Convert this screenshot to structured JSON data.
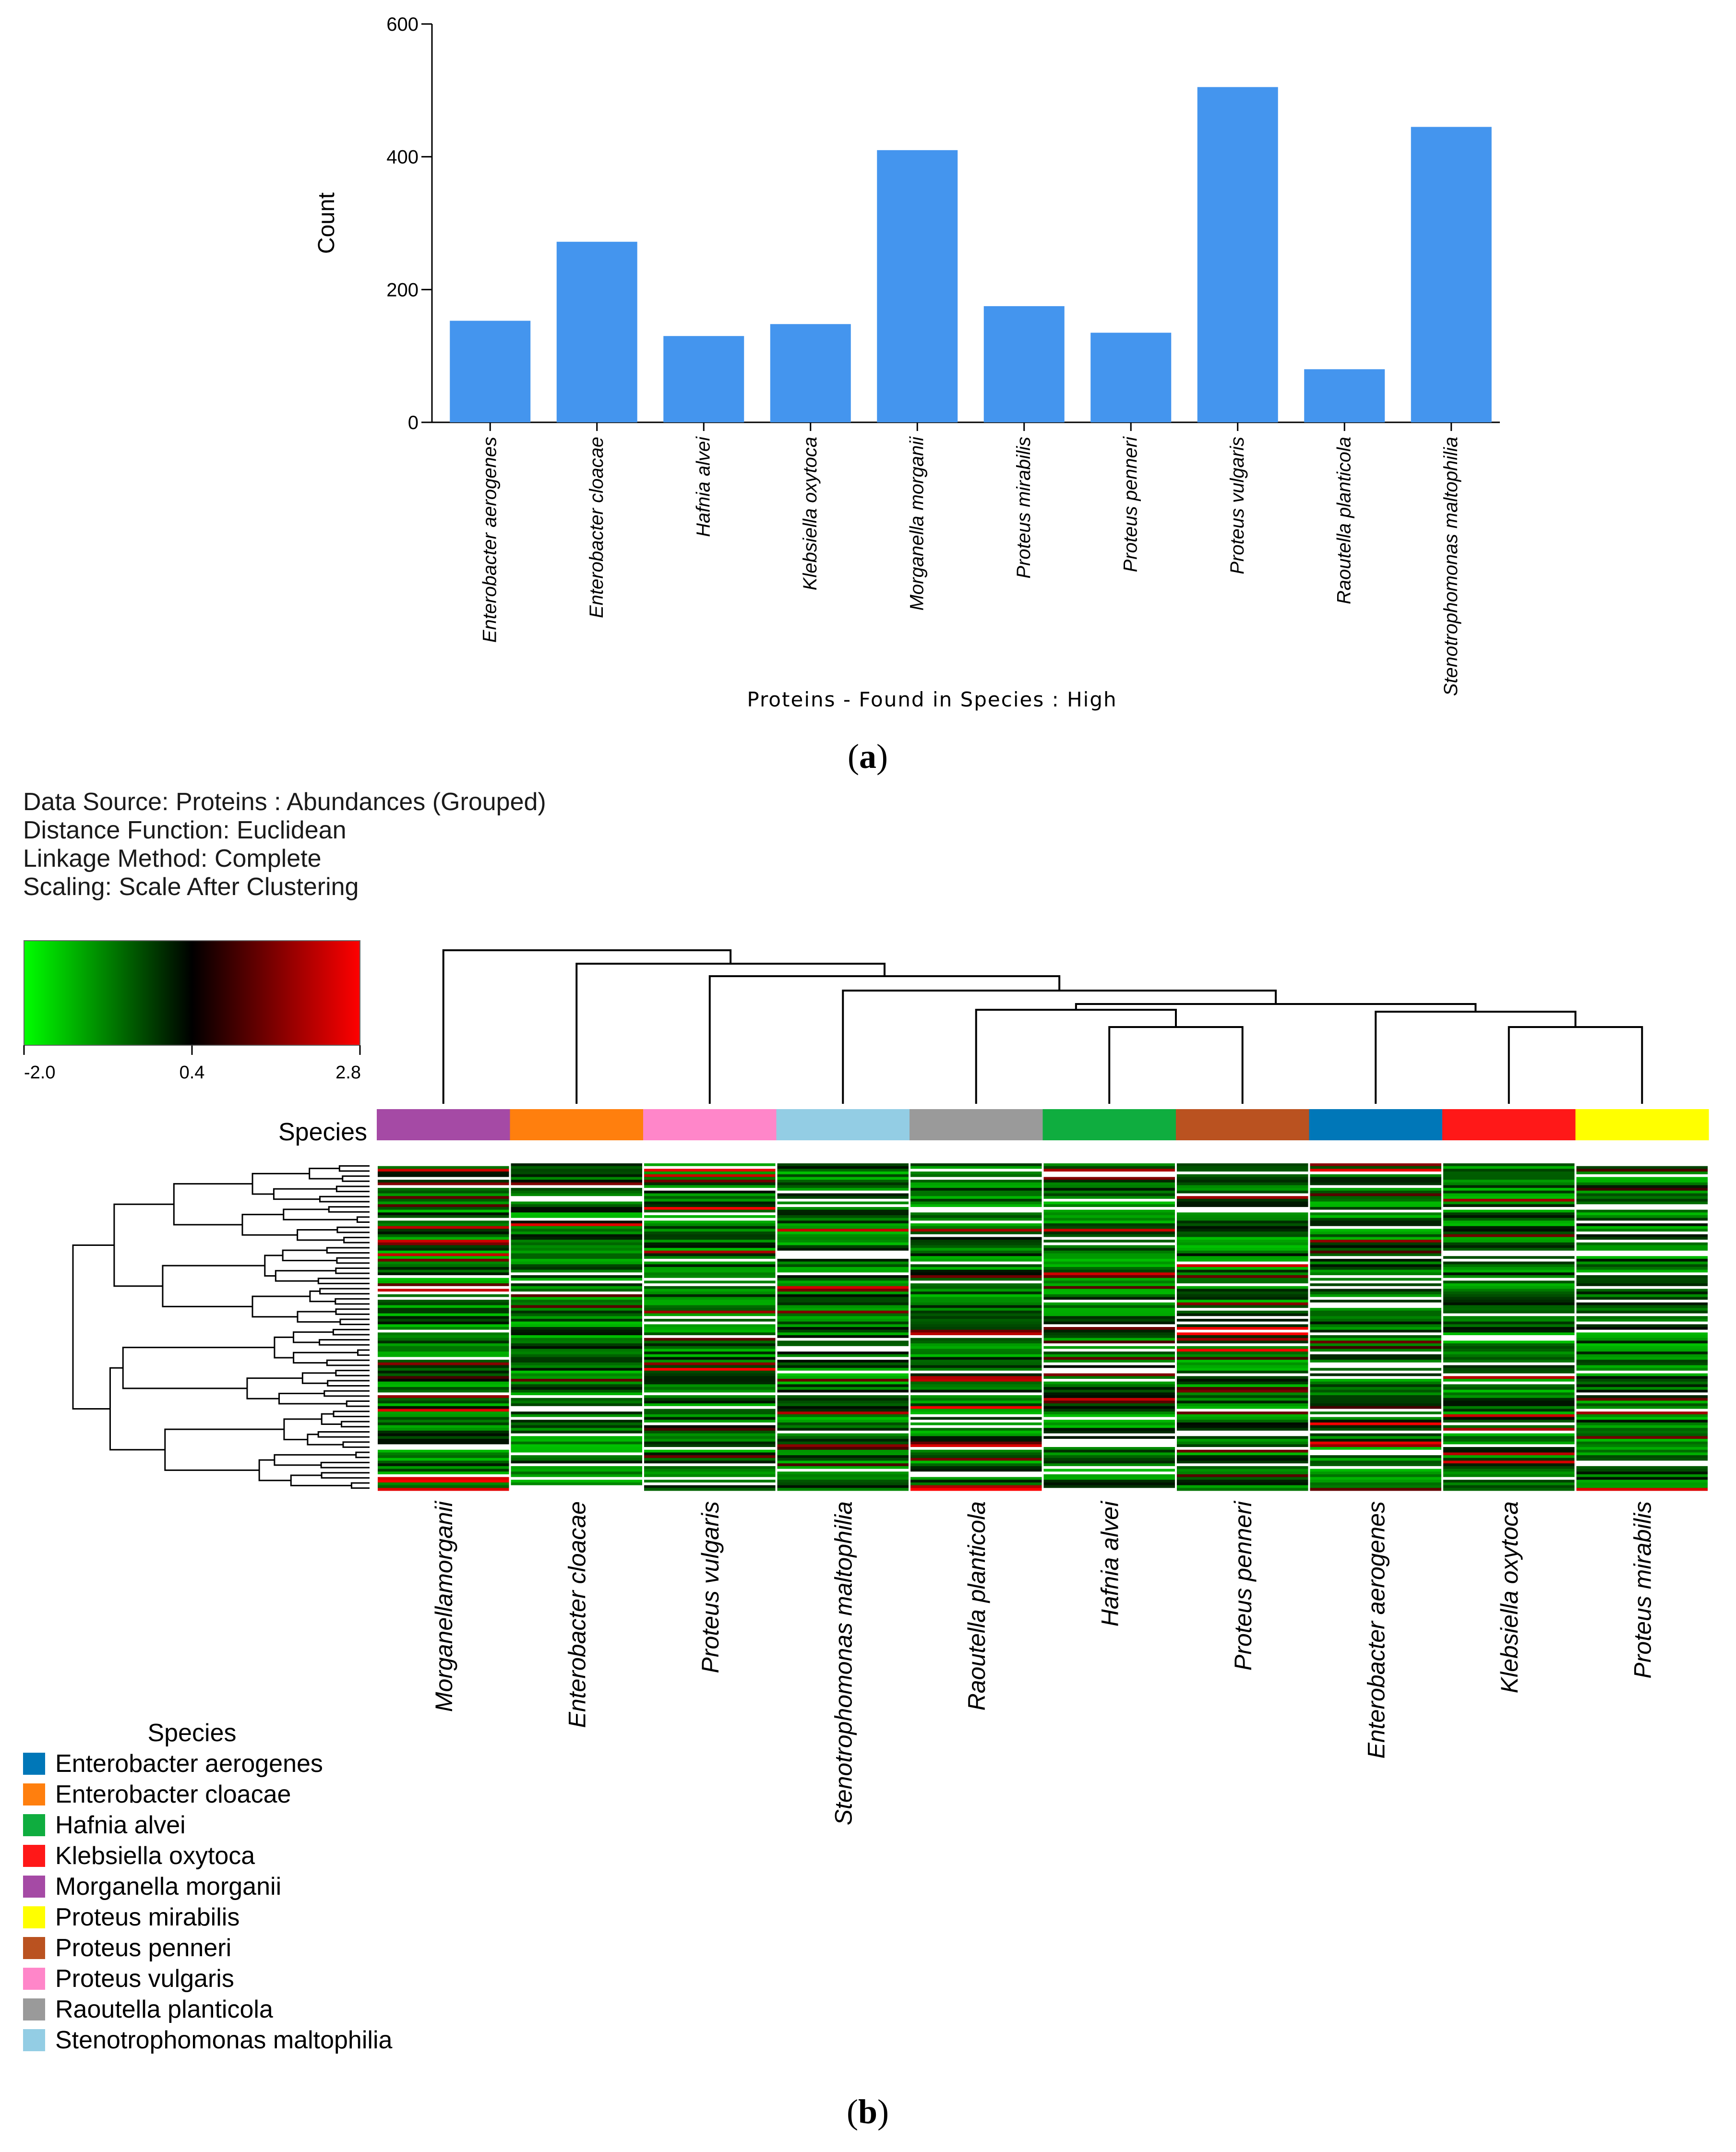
{
  "chart_data": [
    {
      "type": "bar",
      "panel": "a",
      "title": "",
      "ylabel": "Count",
      "xlabel": "Proteins - Found in Species : High",
      "ylim": [
        0,
        600
      ],
      "yticks": [
        0,
        200,
        400,
        600
      ],
      "categories": [
        "Enterobacter aerogenes",
        "Enterobacter cloacae",
        "Hafnia alvei",
        "Klebsiella oxytoca",
        "Morganella morganii",
        "Proteus mirabilis",
        "Proteus penneri",
        "Proteus vulgaris",
        "Raoutella planticola",
        "Stenotrophomonas maltophilia"
      ],
      "values": [
        153,
        272,
        130,
        148,
        410,
        175,
        135,
        505,
        80,
        445
      ],
      "bar_color": "#4495ee"
    },
    {
      "type": "heatmap",
      "panel": "b",
      "info": [
        "Data Source: Proteins : Abundances (Grouped)",
        "Distance Function: Euclidean",
        "Linkage Method: Complete",
        "Scaling: Scale After Clustering"
      ],
      "colorscale": {
        "min": -2.0,
        "mid": 0.4,
        "max": 2.8,
        "ticks": [
          "-2.0",
          "0.4",
          "2.8"
        ],
        "colors": [
          "#00ff00",
          "#000000",
          "#ff0000"
        ]
      },
      "row_label": "Species",
      "columns": [
        "Morganellamorganii",
        "Enterobacter cloacae",
        "Proteus vulgaris",
        "Stenotrophomonas maltophilia",
        "Raoutella planticola",
        "Hafnia alvei",
        "Proteus penneri",
        "Enterobacter aerogenes",
        "Klebsiella oxytoca",
        "Proteus mirabilis"
      ],
      "column_colors": [
        "#a54aa5",
        "#ff7f0e",
        "#ff86c9",
        "#93cde4",
        "#9a9a9a",
        "#0fad3f",
        "#ba5220",
        "#0077b8",
        "#ff1818",
        "#ffff00"
      ],
      "legend": {
        "title": "Species",
        "items": [
          {
            "label": "Enterobacter aerogenes",
            "color": "#0077b8"
          },
          {
            "label": "Enterobacter cloacae",
            "color": "#ff7f0e"
          },
          {
            "label": "Hafnia alvei",
            "color": "#0fad3f"
          },
          {
            "label": "Klebsiella oxytoca",
            "color": "#ff1818"
          },
          {
            "label": "Morganella morganii",
            "color": "#a54aa5"
          },
          {
            "label": "Proteus mirabilis",
            "color": "#ffff00"
          },
          {
            "label": "Proteus penneri",
            "color": "#ba5220"
          },
          {
            "label": "Proteus vulgaris",
            "color": "#ff86c9"
          },
          {
            "label": "Raoutella planticola",
            "color": "#9a9a9a"
          },
          {
            "label": "Stenotrophomonas maltophilia",
            "color": "#93cde4"
          }
        ]
      }
    }
  ],
  "panel_labels": {
    "a_open": "(",
    "a_letter": "a",
    "a_close": ")",
    "b_open": "(",
    "b_letter": "b",
    "b_close": ")"
  }
}
